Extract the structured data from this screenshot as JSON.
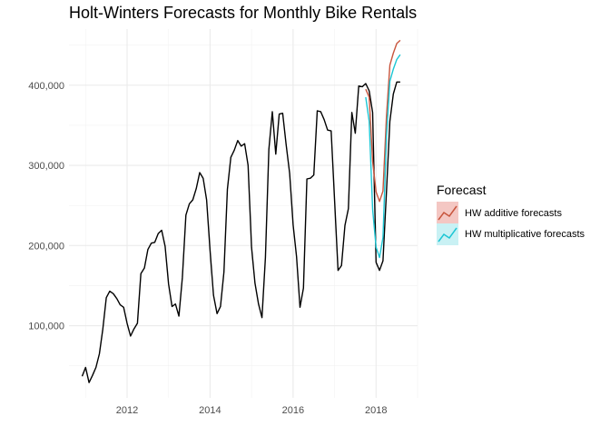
{
  "chart_data": {
    "type": "line",
    "title": "Holt-Winters Forecasts for Monthly Bike Rentals",
    "xlabel": "",
    "ylabel": "",
    "x_ticks": [
      "2012",
      "2014",
      "2016",
      "2018"
    ],
    "y_ticks": [
      "100,000",
      "200,000",
      "300,000",
      "400,000"
    ],
    "xlim": [
      2010.6,
      2019.0
    ],
    "ylim": [
      10000,
      470000
    ],
    "grid": true,
    "legend": {
      "title": "Forecast",
      "placement": "right",
      "entries": [
        "HW additive forecasts",
        "HW multiplicative forecasts"
      ]
    },
    "series": [
      {
        "color": "#000000",
        "x": [
          2010.917,
          2011.0,
          2011.083,
          2011.167,
          2011.25,
          2011.333,
          2011.417,
          2011.5,
          2011.583,
          2011.667,
          2011.75,
          2011.833,
          2011.917,
          2012.0,
          2012.083,
          2012.167,
          2012.25,
          2012.333,
          2012.417,
          2012.5,
          2012.583,
          2012.667,
          2012.75,
          2012.833,
          2012.917,
          2013.0,
          2013.083,
          2013.167,
          2013.25,
          2013.333,
          2013.417,
          2013.5,
          2013.583,
          2013.667,
          2013.75,
          2013.833,
          2013.917,
          2014.0,
          2014.083,
          2014.167,
          2014.25,
          2014.333,
          2014.417,
          2014.5,
          2014.583,
          2014.667,
          2014.75,
          2014.833,
          2014.917,
          2015.0,
          2015.083,
          2015.167,
          2015.25,
          2015.333,
          2015.417,
          2015.5,
          2015.583,
          2015.667,
          2015.75,
          2015.833,
          2015.917,
          2016.0,
          2016.083,
          2016.167,
          2016.25,
          2016.333,
          2016.417,
          2016.5,
          2016.583,
          2016.667,
          2016.75,
          2016.833,
          2016.917,
          2017.0,
          2017.083,
          2017.167,
          2017.25,
          2017.333,
          2017.417,
          2017.5,
          2017.583,
          2017.667,
          2017.75,
          2017.833,
          2017.917,
          2018.0,
          2018.083,
          2018.167,
          2018.25,
          2018.333,
          2018.417,
          2018.5,
          2018.583
        ],
        "y": [
          37000,
          48000,
          29000,
          38000,
          48000,
          65000,
          96000,
          135000,
          143000,
          140000,
          134000,
          126000,
          123000,
          103000,
          87000,
          96000,
          103000,
          165000,
          172000,
          195000,
          203000,
          204000,
          215000,
          219000,
          199000,
          152000,
          124000,
          127000,
          112000,
          160000,
          238000,
          252000,
          257000,
          271000,
          291000,
          284000,
          257000,
          194000,
          138000,
          115000,
          124000,
          167000,
          270000,
          310000,
          319000,
          331000,
          324000,
          327000,
          300000,
          198000,
          153000,
          127000,
          110000,
          185000,
          320000,
          367000,
          314000,
          364000,
          365000,
          326000,
          290000,
          226000,
          186000,
          123000,
          147000,
          283000,
          284000,
          288000,
          368000,
          367000,
          357000,
          344000,
          343000,
          256000,
          169000,
          175000,
          225000,
          246000,
          366000,
          340000,
          399000,
          398000,
          402000,
          393000,
          366000,
          179000,
          169000,
          181000,
          266000,
          355000,
          389000,
          404000,
          404000
        ]
      },
      {
        "name": "HW additive forecasts",
        "color": "#c8553d",
        "x": [
          2017.75,
          2017.833,
          2017.917,
          2018.0,
          2018.083,
          2018.167,
          2018.25,
          2018.333,
          2018.417,
          2018.5,
          2018.583
        ],
        "y": [
          395000,
          385000,
          305000,
          267000,
          255000,
          268000,
          360000,
          425000,
          440000,
          452000,
          456000
        ]
      },
      {
        "name": "HW multiplicative forecasts",
        "color": "#1cc6d4",
        "x": [
          2017.75,
          2017.833,
          2017.917,
          2018.0,
          2018.083,
          2018.167,
          2018.25,
          2018.333,
          2018.417,
          2018.5,
          2018.583
        ],
        "y": [
          385000,
          355000,
          245000,
          198000,
          185000,
          210000,
          335000,
          405000,
          420000,
          432000,
          438000
        ]
      }
    ]
  }
}
